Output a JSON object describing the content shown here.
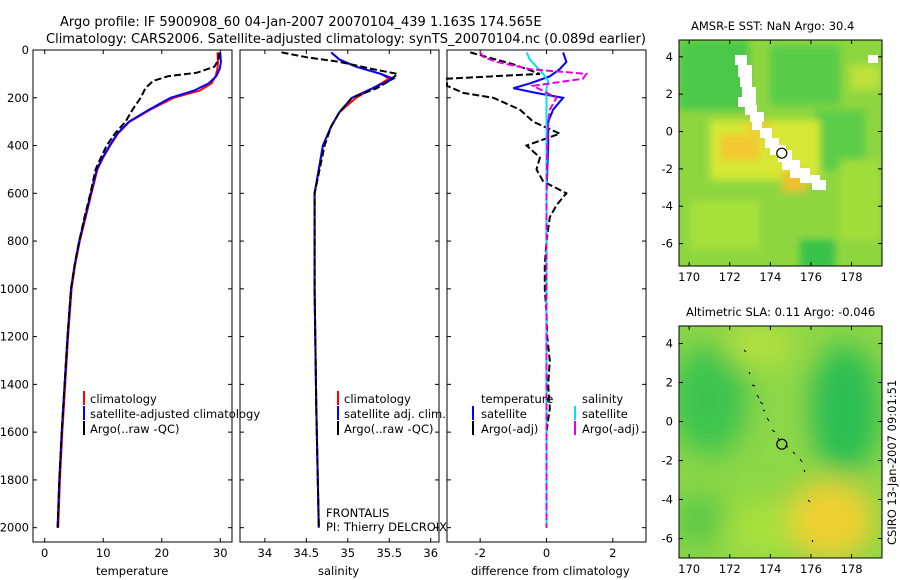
{
  "title": {
    "line1": "Argo profile: IF 5900908_60 04-Jan-2007 20070104_439 1.163S 174.565E",
    "line2": "Climatology: CARS2006. Satellite-adjusted climatology: synTS_20070104.nc (0.089d earlier)"
  },
  "side_label": "CSIRO 13-Jan-2007 09:01:51",
  "colors": {
    "red": "#ff0000",
    "blue": "#0000ff",
    "black": "#000000",
    "cyan": "#00e5ee",
    "magenta": "#e600e6"
  },
  "chart_data": [
    {
      "type": "line",
      "id": "temperature",
      "xlabel": "temperature",
      "ylabel": "",
      "xlim": [
        -2,
        32
      ],
      "ylim": [
        2060,
        0
      ],
      "xticks": [
        0,
        10,
        20,
        30
      ],
      "yticks": [
        0,
        200,
        400,
        600,
        800,
        1000,
        1200,
        1400,
        1600,
        1800,
        2000
      ],
      "legend": [
        "climatology",
        "satellite-adjusted climatology",
        "Argo(..raw -QC)"
      ],
      "series": [
        {
          "name": "climatology",
          "color": "red",
          "dash": false,
          "points": [
            [
              29.5,
              10
            ],
            [
              29.6,
              50
            ],
            [
              29.5,
              80
            ],
            [
              29.2,
              110
            ],
            [
              28.5,
              140
            ],
            [
              26.5,
              170
            ],
            [
              22.0,
              200
            ],
            [
              18.0,
              250
            ],
            [
              14.5,
              300
            ],
            [
              12.5,
              350
            ],
            [
              11.2,
              400
            ],
            [
              10.0,
              450
            ],
            [
              9.0,
              500
            ],
            [
              8.0,
              600
            ],
            [
              7.0,
              700
            ],
            [
              6.0,
              800
            ],
            [
              5.2,
              900
            ],
            [
              4.6,
              1000
            ],
            [
              4.0,
              1200
            ],
            [
              3.5,
              1400
            ],
            [
              3.0,
              1600
            ],
            [
              2.6,
              1800
            ],
            [
              2.3,
              2000
            ]
          ]
        },
        {
          "name": "satellite-adjusted climatology",
          "color": "blue",
          "dash": false,
          "points": [
            [
              30.0,
              10
            ],
            [
              30.1,
              50
            ],
            [
              29.9,
              80
            ],
            [
              29.3,
              110
            ],
            [
              28.0,
              140
            ],
            [
              25.5,
              170
            ],
            [
              21.5,
              200
            ],
            [
              17.8,
              250
            ],
            [
              14.4,
              300
            ],
            [
              12.4,
              350
            ],
            [
              11.1,
              400
            ],
            [
              9.9,
              450
            ],
            [
              8.9,
              500
            ],
            [
              7.9,
              600
            ],
            [
              6.9,
              700
            ],
            [
              5.9,
              800
            ],
            [
              5.1,
              900
            ],
            [
              4.5,
              1000
            ],
            [
              3.9,
              1200
            ],
            [
              3.4,
              1400
            ],
            [
              2.9,
              1600
            ],
            [
              2.5,
              1800
            ],
            [
              2.2,
              2000
            ]
          ]
        },
        {
          "name": "Argo(..raw -QC)",
          "color": "black",
          "dash": true,
          "points": [
            [
              29.8,
              10
            ],
            [
              29.7,
              40
            ],
            [
              29.0,
              70
            ],
            [
              26.0,
              95
            ],
            [
              21.0,
              110
            ],
            [
              18.5,
              130
            ],
            [
              17.2,
              160
            ],
            [
              16.4,
              200
            ],
            [
              15.0,
              250
            ],
            [
              13.8,
              300
            ],
            [
              12.0,
              350
            ],
            [
              10.6,
              400
            ],
            [
              9.6,
              450
            ],
            [
              8.7,
              500
            ],
            [
              7.8,
              600
            ],
            [
              6.8,
              700
            ],
            [
              5.9,
              800
            ],
            [
              5.1,
              900
            ],
            [
              4.5,
              1000
            ],
            [
              3.9,
              1200
            ],
            [
              3.4,
              1400
            ],
            [
              2.9,
              1600
            ],
            [
              2.5,
              1800
            ],
            [
              2.2,
              2000
            ]
          ]
        }
      ]
    },
    {
      "type": "line",
      "id": "salinity",
      "xlabel": "salinity",
      "ylabel": "",
      "xlim": [
        33.7,
        36.1
      ],
      "ylim": [
        2060,
        0
      ],
      "xticks": [
        34,
        34.5,
        35,
        35.5,
        36
      ],
      "yticks": [
        0,
        200,
        400,
        600,
        800,
        1000,
        1200,
        1400,
        1600,
        1800,
        2000
      ],
      "legend": [
        "climatology",
        "satellite adj. clim.",
        "Argo(..raw -QC)"
      ],
      "annotation": [
        "FRONTALIS",
        "PI: Thierry DELCROIX"
      ],
      "series": [
        {
          "name": "climatology",
          "color": "red",
          "dash": false,
          "points": [
            [
              34.8,
              10
            ],
            [
              34.9,
              40
            ],
            [
              35.1,
              70
            ],
            [
              35.4,
              100
            ],
            [
              35.5,
              120
            ],
            [
              35.3,
              160
            ],
            [
              35.1,
              200
            ],
            [
              34.9,
              260
            ],
            [
              34.8,
              320
            ],
            [
              34.7,
              400
            ],
            [
              34.65,
              500
            ],
            [
              34.6,
              600
            ],
            [
              34.6,
              700
            ],
            [
              34.6,
              1000
            ],
            [
              34.62,
              1500
            ],
            [
              34.65,
              2000
            ]
          ]
        },
        {
          "name": "satellite adj. clim.",
          "color": "blue",
          "dash": false,
          "points": [
            [
              34.8,
              10
            ],
            [
              34.9,
              40
            ],
            [
              35.1,
              70
            ],
            [
              35.4,
              100
            ],
            [
              35.55,
              120
            ],
            [
              35.3,
              160
            ],
            [
              35.05,
              200
            ],
            [
              34.9,
              260
            ],
            [
              34.8,
              320
            ],
            [
              34.7,
              400
            ],
            [
              34.65,
              500
            ],
            [
              34.6,
              600
            ],
            [
              34.6,
              700
            ],
            [
              34.6,
              1000
            ],
            [
              34.62,
              1500
            ],
            [
              34.65,
              2000
            ]
          ]
        },
        {
          "name": "Argo(..raw -QC)",
          "color": "black",
          "dash": true,
          "points": [
            [
              34.2,
              10
            ],
            [
              34.5,
              30
            ],
            [
              34.9,
              50
            ],
            [
              35.3,
              80
            ],
            [
              35.6,
              100
            ],
            [
              35.5,
              130
            ],
            [
              35.35,
              160
            ],
            [
              35.05,
              200
            ],
            [
              34.9,
              260
            ],
            [
              34.8,
              320
            ],
            [
              34.72,
              400
            ],
            [
              34.66,
              500
            ],
            [
              34.6,
              600
            ],
            [
              34.6,
              700
            ],
            [
              34.6,
              1000
            ],
            [
              34.62,
              1500
            ],
            [
              34.65,
              2000
            ]
          ]
        }
      ]
    },
    {
      "type": "line",
      "id": "difference",
      "xlabel": "difference from climatology",
      "ylabel": "",
      "xlim": [
        -3,
        3
      ],
      "ylim": [
        2060,
        0
      ],
      "xticks": [
        -2,
        0,
        2
      ],
      "yticks": [
        0,
        200,
        400,
        600,
        800,
        1000,
        1200,
        1400,
        1600,
        1800,
        2000
      ],
      "legend_headers": [
        "temperature",
        "salinity"
      ],
      "legend": [
        "satellite",
        "Argo(-adj)",
        "satellite",
        "Argo(-adj)"
      ],
      "series": [
        {
          "name": "temperature satellite",
          "color": "blue",
          "dash": false,
          "points": [
            [
              0.5,
              10
            ],
            [
              0.6,
              50
            ],
            [
              0.4,
              80
            ],
            [
              0.1,
              110
            ],
            [
              -0.5,
              140
            ],
            [
              -1.0,
              160
            ],
            [
              -0.3,
              180
            ],
            [
              0.5,
              200
            ],
            [
              0.2,
              250
            ],
            [
              0.05,
              300
            ],
            [
              0.05,
              400
            ],
            [
              0.0,
              600
            ],
            [
              0.0,
              1000
            ],
            [
              0.0,
              2000
            ]
          ]
        },
        {
          "name": "temperature Argo(-adj)",
          "color": "black",
          "dash": true,
          "points": [
            [
              -2.3,
              10
            ],
            [
              -1.0,
              60
            ],
            [
              -0.2,
              100
            ],
            [
              -3.0,
              120
            ],
            [
              -3.0,
              150
            ],
            [
              -2.5,
              180
            ],
            [
              -1.6,
              200
            ],
            [
              -0.8,
              250
            ],
            [
              -0.4,
              300
            ],
            [
              0.4,
              350
            ],
            [
              -0.6,
              400
            ],
            [
              -0.2,
              450
            ],
            [
              -0.3,
              500
            ],
            [
              -0.1,
              550
            ],
            [
              0.6,
              600
            ],
            [
              0.3,
              650
            ],
            [
              0.1,
              700
            ],
            [
              0.0,
              800
            ],
            [
              -0.05,
              900
            ],
            [
              -0.05,
              1000
            ],
            [
              0.0,
              1100
            ],
            [
              0.02,
              1200
            ],
            [
              0.1,
              1300
            ],
            [
              0.05,
              1400
            ],
            [
              0.1,
              1500
            ],
            [
              0.0,
              1600
            ],
            [
              0.0,
              1800
            ],
            [
              0.0,
              2000
            ]
          ]
        },
        {
          "name": "salinity satellite",
          "color": "cyan",
          "dash": false,
          "points": [
            [
              -0.6,
              10
            ],
            [
              -0.5,
              40
            ],
            [
              -0.3,
              70
            ],
            [
              -0.1,
              100
            ],
            [
              0.05,
              130
            ],
            [
              0.0,
              160
            ],
            [
              0.0,
              200
            ],
            [
              0.0,
              300
            ],
            [
              0.0,
              600
            ],
            [
              0.0,
              1000
            ],
            [
              0.0,
              2000
            ]
          ]
        },
        {
          "name": "salinity Argo(-adj)",
          "color": "magenta",
          "dash": true,
          "points": [
            [
              -2.0,
              10
            ],
            [
              -1.9,
              30
            ],
            [
              -1.5,
              50
            ],
            [
              -0.5,
              80
            ],
            [
              1.2,
              100
            ],
            [
              1.1,
              120
            ],
            [
              -0.4,
              150
            ],
            [
              0.3,
              200
            ],
            [
              0.1,
              250
            ],
            [
              0.05,
              300
            ],
            [
              0.02,
              400
            ],
            [
              0.0,
              600
            ],
            [
              0.0,
              1000
            ],
            [
              0.0,
              2000
            ]
          ]
        }
      ]
    },
    {
      "type": "heatmap",
      "id": "sst_map",
      "title": "AMSR-E SST: NaN Argo: 30.4",
      "xlim": [
        169.5,
        179.5
      ],
      "ylim": [
        -7.2,
        4.9
      ],
      "xticks": [
        170,
        172,
        174,
        176,
        178
      ],
      "yticks": [
        4,
        2,
        0,
        -2,
        -4,
        -6
      ],
      "argo_position": [
        174.565,
        -1.163
      ]
    },
    {
      "type": "heatmap",
      "id": "sla_map",
      "title": "Altimetric SLA: 0.11 Argo: -0.046",
      "xlim": [
        169.5,
        179.5
      ],
      "ylim": [
        -7.0,
        4.9
      ],
      "xticks": [
        170,
        172,
        174,
        176,
        178
      ],
      "yticks": [
        4,
        2,
        0,
        -2,
        -4,
        -6
      ],
      "argo_position": [
        174.565,
        -1.163
      ]
    }
  ]
}
